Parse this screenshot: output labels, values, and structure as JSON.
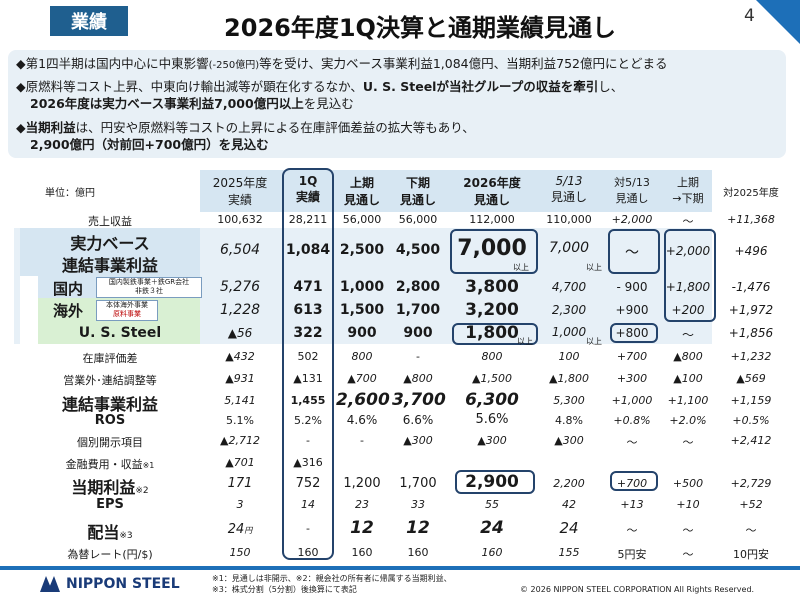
{
  "header": {
    "tag": "業績",
    "title": "2026年度1Q決算と通期業績見通し",
    "page": "4"
  },
  "bullets": {
    "b1_pre": "第1四半期は国内中心に中東影響",
    "b1_small": "(-250億円)",
    "b1_post": "等を受け、実力ベース事業利益1,084億円、当期利益752億円にとどまる",
    "b2_line1_pre": "原燃料等コスト上昇、中東向け輸出減等が顕在化するなか、",
    "b2_line1_bold": "U. S. Steelが当社グループの収益を牽引",
    "b2_line1_post": "し、",
    "b2_line2_bold1": "2026年度は実力ベース事業利益7,000億円以上",
    "b2_line2_post": "を見込む",
    "b3_bold": "当期利益",
    "b3_post": "は、円安や原燃料等コストの上昇による在庫評価差益の拡大等もあり、",
    "b3_line2": "2,900億円（対前回+700億円）を見込む"
  },
  "table": {
    "unit": "単位：億円",
    "headers": {
      "h1a": "2025年度",
      "h1b": "実績",
      "h2a": "1Q",
      "h2b": "実績",
      "h3a": "上期",
      "h3b": "見通し",
      "h4a": "下期",
      "h4b": "見通し",
      "h5a": "2026年度",
      "h5b": "見通し",
      "h6a": "5/13",
      "h6b": "見通し",
      "h7a": "対5/13",
      "h7b": "見通し",
      "h8a": "上期",
      "h8b": "→下期",
      "h9": "対2025年度"
    },
    "rows": {
      "sales": {
        "label": "売上収益",
        "c1": "100,632",
        "c2": "28,211",
        "c3": "56,000",
        "c4": "56,000",
        "c5": "112,000",
        "c6": "110,000",
        "c7": "+2,000",
        "c8": "〜",
        "c9": "+11,368"
      },
      "core": {
        "label1": "実力ベース",
        "label2": "連結事業利益",
        "c1": "6,504",
        "c2": "1,084",
        "c3": "2,500",
        "c4": "4,500",
        "c5": "7,000",
        "c5s": "以上",
        "c6": "7,000",
        "c6s": "以上",
        "c7": "〜",
        "c8": "+2,000",
        "c9": "+496"
      },
      "domestic": {
        "label": "国内",
        "note1": "国内製鉄事業＋鉄GR会社",
        "note2": "非鉄３社",
        "c1": "5,276",
        "c2": "471",
        "c3": "1,000",
        "c4": "2,800",
        "c5": "3,800",
        "c6": "4,700",
        "c7": "- 900",
        "c8": "+1,800",
        "c9": "-1,476"
      },
      "overseas": {
        "label": "海外",
        "note1": "本体海外事業",
        "note2": "原料事業",
        "c1": "1,228",
        "c2": "613",
        "c3": "1,500",
        "c4": "1,700",
        "c5": "3,200",
        "c6": "2,300",
        "c7": "+900",
        "c8": "+200",
        "c9": "+1,972"
      },
      "uss": {
        "label": "U. S. Steel",
        "c1": "▲56",
        "c2": "322",
        "c3": "900",
        "c4": "900",
        "c5": "1,800",
        "c5s": "以上",
        "c6": "1,000",
        "c6s": "以上",
        "c7": "+800",
        "c8": "〜",
        "c9": "+1,856"
      },
      "inventory": {
        "label": "在庫評価差",
        "c1": "▲432",
        "c2": "502",
        "c3": "800",
        "c4": "-",
        "c5": "800",
        "c6": "100",
        "c7": "+700",
        "c8": "▲800",
        "c9": "+1,232"
      },
      "adjust": {
        "label": "営業外･連結調整等",
        "c1": "▲931",
        "c2": "▲131",
        "c3": "▲700",
        "c4": "▲800",
        "c5": "▲1,500",
        "c6": "▲1,800",
        "c7": "+300",
        "c8": "▲100",
        "c9": "▲569"
      },
      "consol": {
        "label": "連結事業利益",
        "c1": "5,141",
        "c2": "1,455",
        "c3": "2,600",
        "c4": "3,700",
        "c5": "6,300",
        "c6": "5,300",
        "c7": "+1,000",
        "c8": "+1,100",
        "c9": "+1,159"
      },
      "ros": {
        "label": "ROS",
        "c1": "5.1%",
        "c2": "5.2%",
        "c3": "4.6%",
        "c4": "6.6%",
        "c5": "5.6%",
        "c6": "4.8%",
        "c7": "+0.8%",
        "c8": "+2.0%",
        "c9": "+0.5%"
      },
      "special": {
        "label": "個別開示項目",
        "c1": "▲2,712",
        "c2": "-",
        "c3": "-",
        "c4": "▲300",
        "c5": "▲300",
        "c6": "▲300",
        "c7": "〜",
        "c8": "〜",
        "c9": "+2,412"
      },
      "finance": {
        "label": "金融費用・収益",
        "sup": "※1",
        "c1": "▲701",
        "c2": "▲316"
      },
      "net": {
        "label": "当期利益",
        "sup": "※2",
        "c1": "171",
        "c2": "752",
        "c3": "1,200",
        "c4": "1,700",
        "c5": "2,900",
        "c6": "2,200",
        "c7": "+700",
        "c8": "+500",
        "c9": "+2,729"
      },
      "eps": {
        "label": "EPS",
        "c1": "3",
        "c2": "14",
        "c3": "23",
        "c4": "33",
        "c5": "55",
        "c6": "42",
        "c7": "+13",
        "c8": "+10",
        "c9": "+52"
      },
      "div": {
        "label": "配当",
        "sup": "※3",
        "c1": "24",
        "c1s": "円",
        "c2": "-",
        "c3": "12",
        "c4": "12",
        "c5": "24",
        "c6": "24",
        "c7": "〜",
        "c8": "〜",
        "c9": "〜"
      },
      "fx": {
        "label": "為替レート(円/$)",
        "c1": "150",
        "c2": "160",
        "c3": "160",
        "c4": "160",
        "c5": "160",
        "c6": "155",
        "c7": "5円安",
        "c8": "〜",
        "c9": "10円安"
      }
    }
  },
  "footer": {
    "logo": "NIPPON STEEL",
    "note1": "※1：見通しは非開示、※2：親会社の所有者に帰属する当期利益、",
    "note2": "※3：株式分割（5分割）後換算にて表記",
    "copyright": "© 2026 NIPPON STEEL CORPORATION All Rights Reserved."
  },
  "colors": {
    "accent": "#1d6fb8",
    "navy": "#24436b",
    "band": "#d6e6f2",
    "green": "#d9f0d3"
  }
}
